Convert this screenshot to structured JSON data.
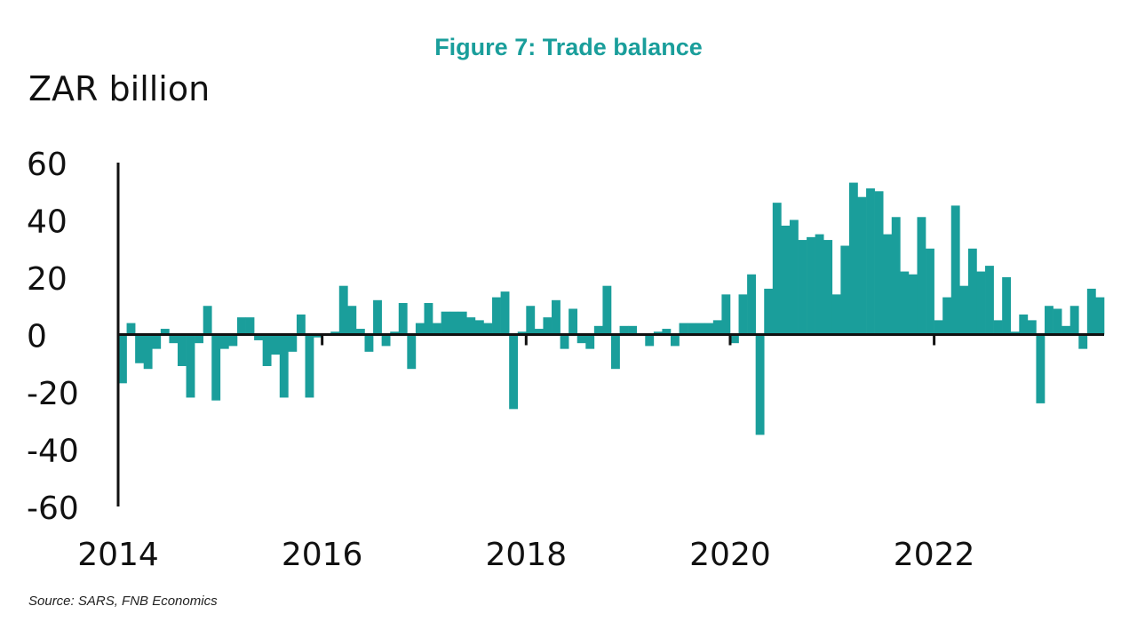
{
  "chart_data": {
    "type": "bar",
    "title": "Figure 7: Trade balance",
    "ylabel": "ZAR billion",
    "xlabel": "",
    "ylim": [
      -60,
      60
    ],
    "yticks": [
      60,
      40,
      20,
      0,
      -20,
      -40,
      -60
    ],
    "xticks": [
      "2014",
      "2016",
      "2018",
      "2020",
      "2022"
    ],
    "x_start": "2014-01",
    "frequency": "monthly",
    "color": "#1a9e9b",
    "grid": false,
    "values": [
      -17,
      4,
      -10,
      -12,
      -5,
      2,
      -3,
      -11,
      -22,
      -3,
      10,
      -23,
      -5,
      -4,
      6,
      6,
      -2,
      -11,
      -7,
      -22,
      -6,
      7,
      -22,
      -1,
      0,
      1,
      17,
      10,
      2,
      -6,
      12,
      -4,
      1,
      11,
      -12,
      4,
      11,
      4,
      8,
      8,
      8,
      6,
      5,
      4,
      13,
      15,
      -26,
      1,
      10,
      2,
      6,
      12,
      -5,
      9,
      -3,
      -5,
      3,
      17,
      -12,
      3,
      3,
      0,
      -4,
      1,
      2,
      -4,
      4,
      4,
      4,
      4,
      5,
      14,
      -3,
      14,
      21,
      -35,
      16,
      46,
      38,
      40,
      33,
      34,
      35,
      33,
      14,
      31,
      53,
      48,
      51,
      50,
      35,
      41,
      22,
      21,
      41,
      30,
      5,
      13,
      45,
      17,
      30,
      22,
      24,
      5,
      20,
      1,
      7,
      5,
      -24,
      10,
      9,
      3,
      10,
      -5,
      16,
      13
    ]
  },
  "source": "Source: SARS, FNB Economics"
}
